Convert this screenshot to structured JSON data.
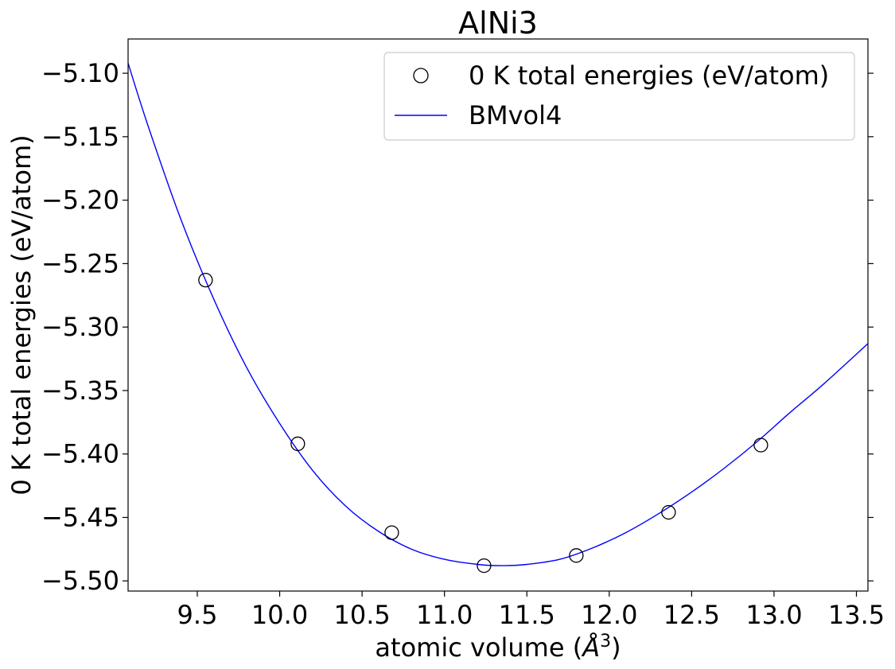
{
  "chart_data": {
    "type": "scatter",
    "title": "AlNi3",
    "xlabel_prefix": "atomic volume (",
    "xlabel_unit": "Å",
    "xlabel_sup": "3",
    "xlabel_suffix": ")",
    "ylabel": "0 K total energies (eV/atom)",
    "xlim": [
      9.08,
      13.57
    ],
    "ylim": [
      -5.508,
      -5.073
    ],
    "xticks": [
      9.5,
      10.0,
      10.5,
      11.0,
      11.5,
      12.0,
      12.5,
      13.0,
      13.5
    ],
    "xtick_labels": [
      "9.5",
      "10.0",
      "10.5",
      "11.0",
      "11.5",
      "12.0",
      "12.5",
      "13.0",
      "13.5"
    ],
    "yticks": [
      -5.1,
      -5.15,
      -5.2,
      -5.25,
      -5.3,
      -5.35,
      -5.4,
      -5.45,
      -5.5
    ],
    "ytick_labels": [
      "−5.10",
      "−5.15",
      "−5.20",
      "−5.25",
      "−5.30",
      "−5.35",
      "−5.40",
      "−5.45",
      "−5.50"
    ],
    "grid": false,
    "legend_position": "top-right",
    "series": [
      {
        "name": "0 K total energies (eV/atom)",
        "kind": "points",
        "marker": "open-circle",
        "color": "#000000",
        "x": [
          9.55,
          10.11,
          10.68,
          11.24,
          11.8,
          12.36,
          12.92
        ],
        "y": [
          -5.263,
          -5.392,
          -5.462,
          -5.488,
          -5.48,
          -5.446,
          -5.393
        ]
      },
      {
        "name": "BMvol4",
        "kind": "line",
        "color": "#0000ff",
        "x": [
          9.08,
          9.2,
          9.4,
          9.6,
          9.8,
          10.0,
          10.2,
          10.4,
          10.6,
          10.8,
          11.0,
          11.2,
          11.35,
          11.5,
          11.7,
          11.9,
          12.1,
          12.3,
          12.5,
          12.7,
          12.9,
          13.1,
          13.3,
          13.57
        ],
        "y": [
          -5.092,
          -5.141,
          -5.215,
          -5.278,
          -5.332,
          -5.376,
          -5.413,
          -5.441,
          -5.461,
          -5.475,
          -5.483,
          -5.487,
          -5.488,
          -5.487,
          -5.483,
          -5.474,
          -5.462,
          -5.447,
          -5.43,
          -5.411,
          -5.39,
          -5.367,
          -5.345,
          -5.313
        ]
      }
    ]
  }
}
